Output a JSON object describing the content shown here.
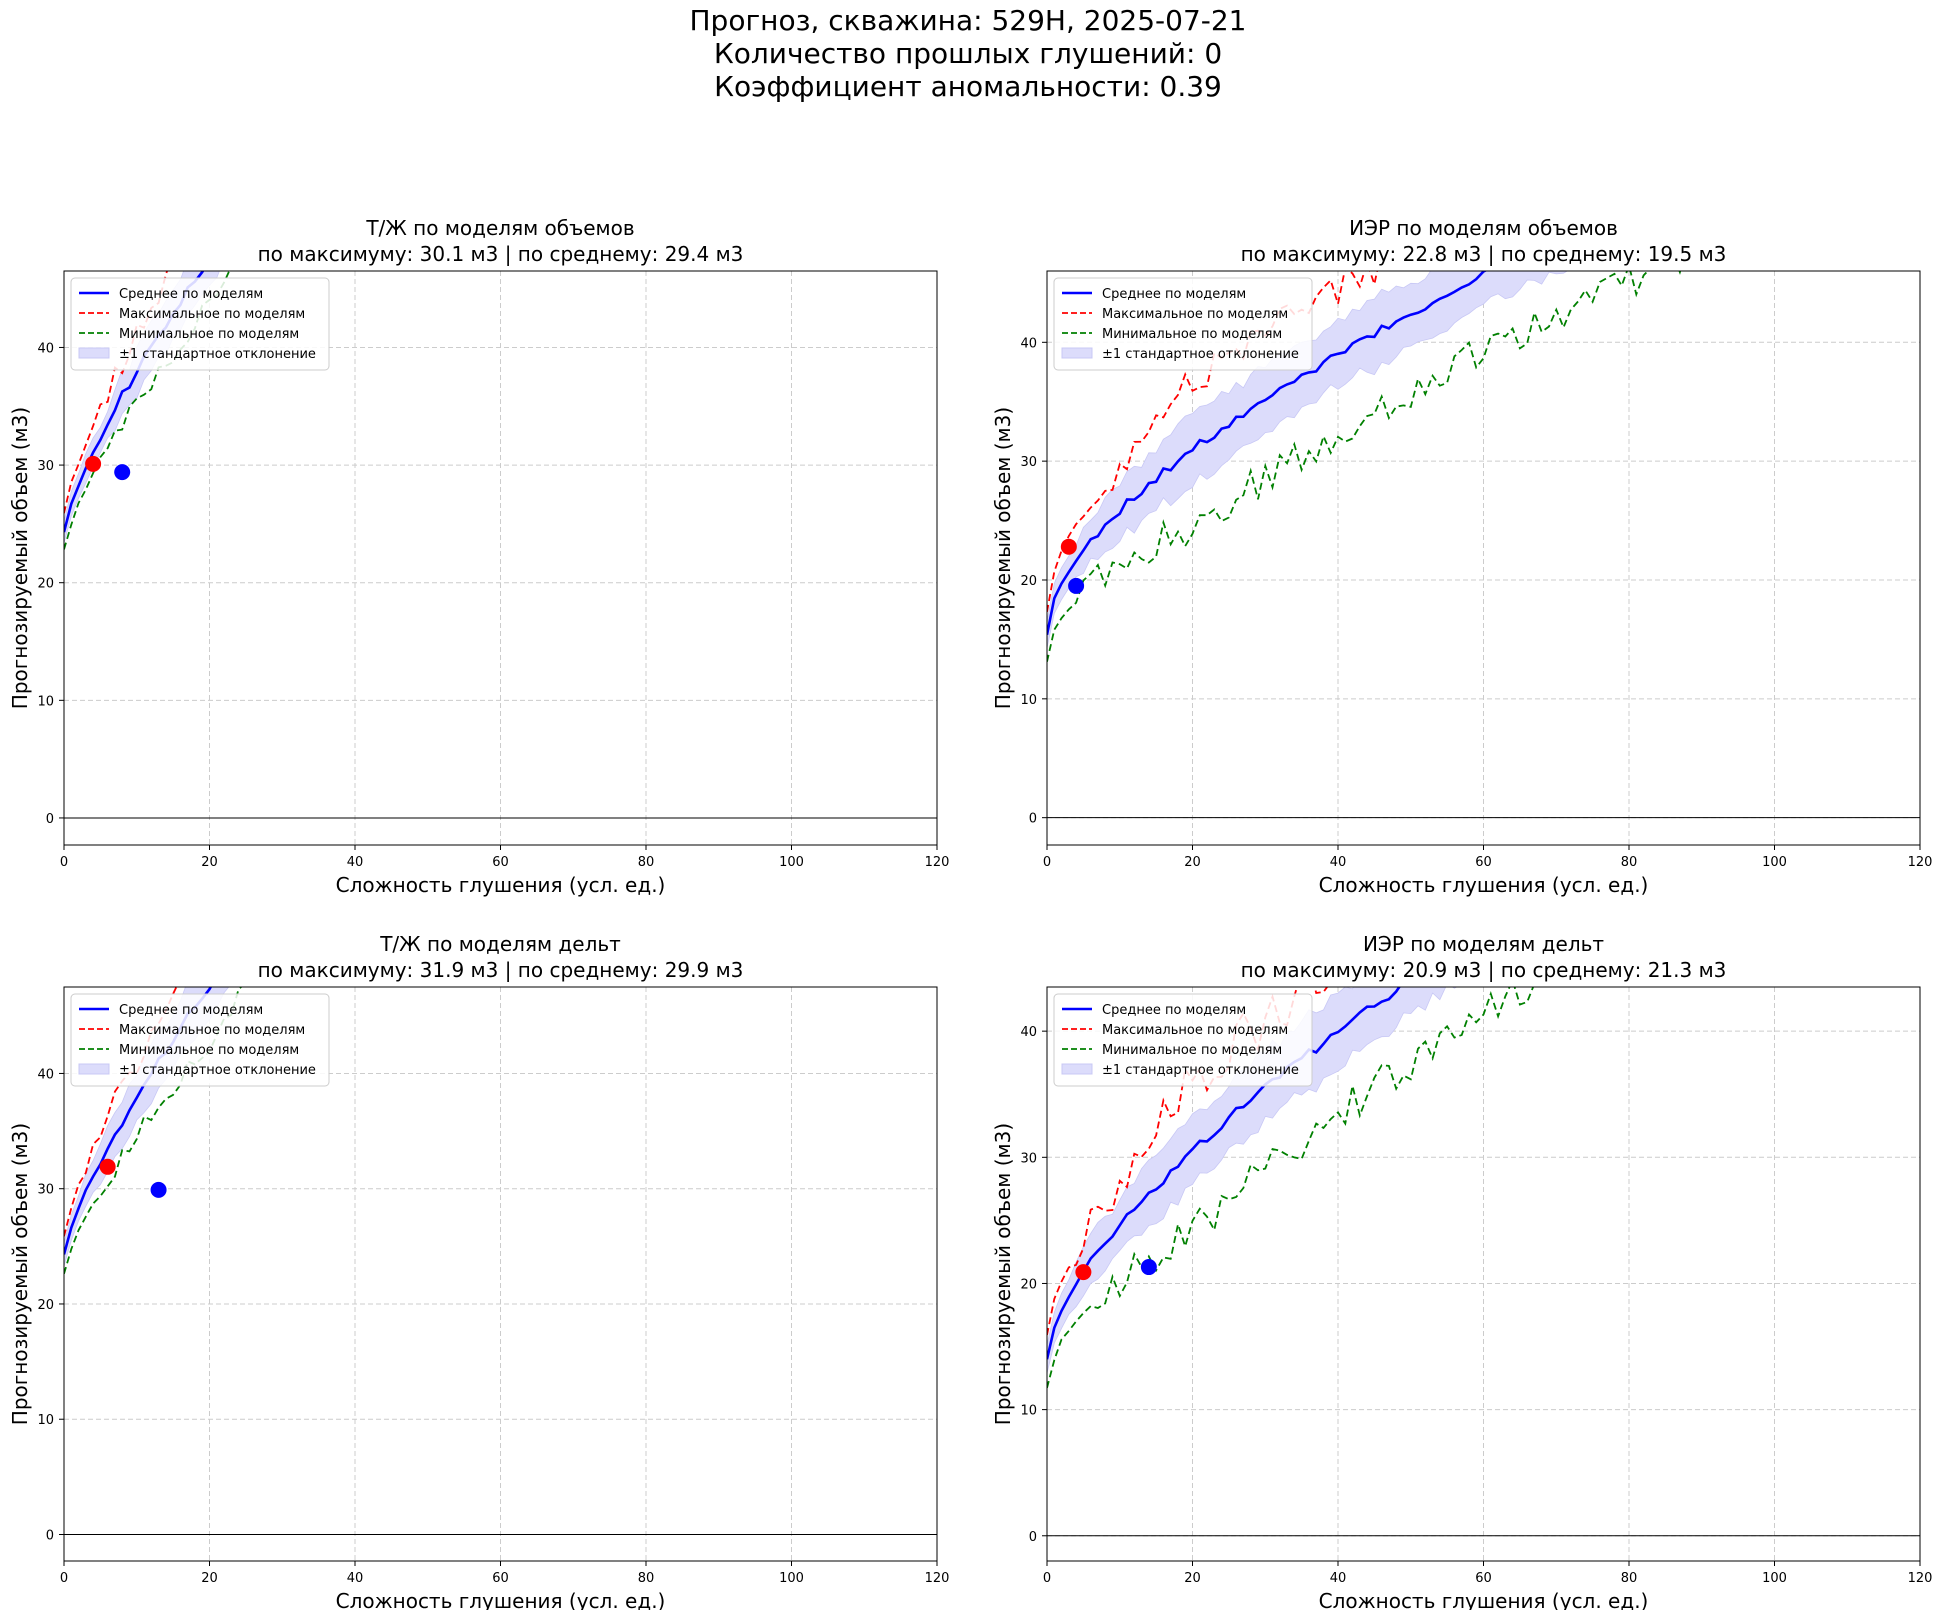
{
  "suptitle": {
    "line1": "Прогноз, скважина: 529Н, 2025-07-21",
    "line2": "Количество прошлых глушений: 0",
    "line3": "Коэффициент аномальности: 0.39"
  },
  "legend": {
    "mean": "Среднее по моделям",
    "max": "Максимальное по моделям",
    "min": "Минимальное по моделям",
    "band": "±1 стандартное отклонение"
  },
  "colors": {
    "mean": "#0000ff",
    "max": "#ff0000",
    "min": "#008000",
    "band": "#dcdcfb",
    "grid": "#cccccc"
  },
  "chart_data": [
    {
      "type": "line",
      "title_line1": "Т/Ж по моделям объемов",
      "title_line2": "по максимуму: 30.1 м3 | по среднему: 29.4 м3",
      "xlabel": "Сложность глушения (усл. ед.)",
      "ylabel": "Прогнозируемый объем (м3)",
      "xlim": [
        0,
        120
      ],
      "ylim": [
        -2.3,
        46.5
      ],
      "xticks": [
        0,
        20,
        40,
        60,
        80,
        100,
        120
      ],
      "yticks": [
        0,
        10,
        20,
        30,
        40
      ],
      "grid": true,
      "legend_position": "upper-left",
      "mean_curve": {
        "y0": 24.3,
        "a": 2.3,
        "b": 0.75,
        "tail": 0.08,
        "noise": 0.4
      },
      "max_offset": 4.6,
      "min_offset": -4.2,
      "band_halfwidth": 2.3,
      "max_noise": 1.0,
      "min_noise": 1.0,
      "seed": 11,
      "markers": {
        "max": {
          "x": 4,
          "y": 30.1
        },
        "mean": {
          "x": 8,
          "y": 29.4
        }
      }
    },
    {
      "type": "line",
      "title_line1": "ИЭР по моделям объемов",
      "title_line2": "по максимуму: 22.8 м3 | по среднему: 19.5 м3",
      "xlabel": "Сложность глушения (усл. ед.)",
      "ylabel": "Прогнозируемый объем (м3)",
      "xlim": [
        0,
        120
      ],
      "ylim": [
        -2.3,
        46.0
      ],
      "xticks": [
        0,
        20,
        40,
        60,
        80,
        100,
        120
      ],
      "yticks": [
        0,
        10,
        20,
        30,
        40
      ],
      "grid": true,
      "legend_position": "upper-left",
      "mean_curve": {
        "y0": 15.4,
        "a": 2.9,
        "b": 0.5,
        "tail": 0.13,
        "noise": 0.35
      },
      "max_offset": 5.5,
      "min_offset": -6.5,
      "band_halfwidth": 2.8,
      "max_noise": 1.5,
      "min_noise": 1.5,
      "seed": 23,
      "markers": {
        "max": {
          "x": 3,
          "y": 22.8
        },
        "mean": {
          "x": 4,
          "y": 19.5
        }
      }
    },
    {
      "type": "line",
      "title_line1": "Т/Ж по моделям дельт",
      "title_line2": "по максимуму: 31.9 м3 | по среднему: 29.9 м3",
      "xlabel": "Сложность глушения (усл. ед.)",
      "ylabel": "Прогнозируемый объем (м3)",
      "xlim": [
        0,
        120
      ],
      "ylim": [
        -2.3,
        47.5
      ],
      "xticks": [
        0,
        20,
        40,
        60,
        80,
        100,
        120
      ],
      "yticks": [
        0,
        10,
        20,
        30,
        40
      ],
      "grid": true,
      "legend_position": "upper-left",
      "mean_curve": {
        "y0": 24.3,
        "a": 2.3,
        "b": 0.75,
        "tail": 0.08,
        "noise": 0.4
      },
      "max_offset": 4.5,
      "min_offset": -4.8,
      "band_halfwidth": 2.5,
      "max_noise": 1.1,
      "min_noise": 1.1,
      "seed": 37,
      "markers": {
        "max": {
          "x": 6,
          "y": 31.9
        },
        "mean": {
          "x": 13,
          "y": 29.9
        }
      }
    },
    {
      "type": "line",
      "title_line1": "ИЭР по моделям дельт",
      "title_line2": "по максимуму: 20.9 м3 | по среднему: 21.3 м3",
      "xlabel": "Сложность глушения (усл. ед.)",
      "ylabel": "Прогнозируемый объем (м3)",
      "xlim": [
        0,
        120
      ],
      "ylim": [
        -2.0,
        43.5
      ],
      "xticks": [
        0,
        20,
        40,
        60,
        80,
        100,
        120
      ],
      "yticks": [
        0,
        10,
        20,
        30,
        40
      ],
      "grid": true,
      "legend_position": "upper-left",
      "mean_curve": {
        "y0": 14.0,
        "a": 2.4,
        "b": 0.6,
        "tail": 0.1,
        "noise": 0.35
      },
      "max_offset": 5.5,
      "min_offset": -6.5,
      "band_halfwidth": 2.8,
      "max_noise": 2.0,
      "min_noise": 1.5,
      "seed": 51,
      "markers": {
        "max": {
          "x": 5,
          "y": 20.9
        },
        "mean": {
          "x": 14,
          "y": 21.3
        }
      }
    }
  ]
}
